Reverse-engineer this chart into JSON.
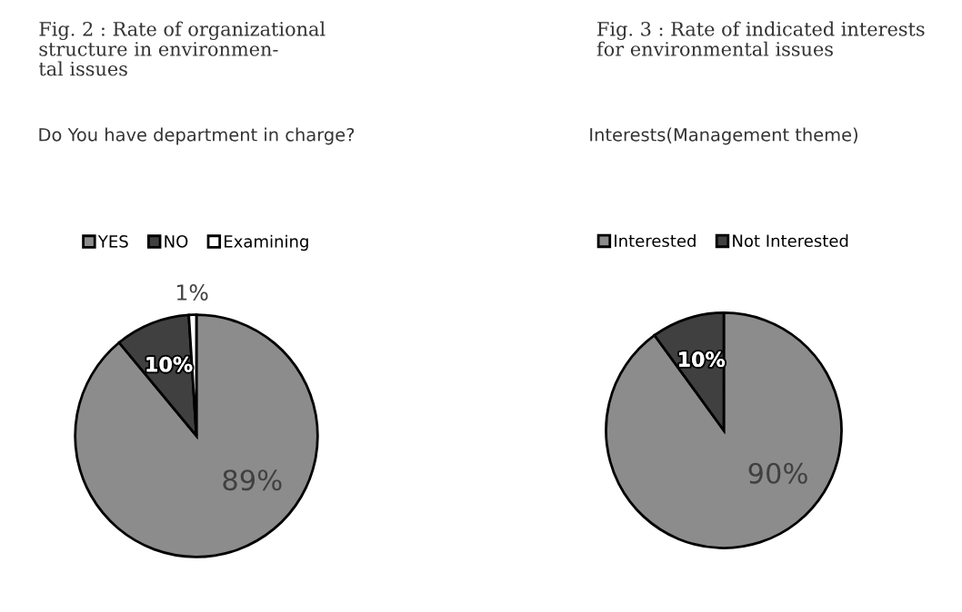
{
  "chart_data": [
    {
      "type": "pie",
      "title": "Fig. 2 : Rate of organizational\nstructure in environmen-\ntal issues",
      "subtitle": "Do You have department in charge?",
      "categories": [
        "YES",
        "NO",
        "Examining"
      ],
      "values": [
        89,
        10,
        1
      ],
      "value_labels": [
        "89%",
        "10%",
        "1%"
      ],
      "colors": [
        "#8c8c8c",
        "#404040",
        "#ffffff"
      ],
      "legend": "top"
    },
    {
      "type": "pie",
      "title": "Fig. 3 : Rate of indicated interests\nfor environmental issues",
      "subtitle": "Interests(Management theme)",
      "categories": [
        "Interested",
        "Not Interested"
      ],
      "values": [
        90,
        10
      ],
      "value_labels": [
        "90%",
        "10%"
      ],
      "colors": [
        "#8c8c8c",
        "#404040"
      ],
      "legend": "top"
    }
  ]
}
